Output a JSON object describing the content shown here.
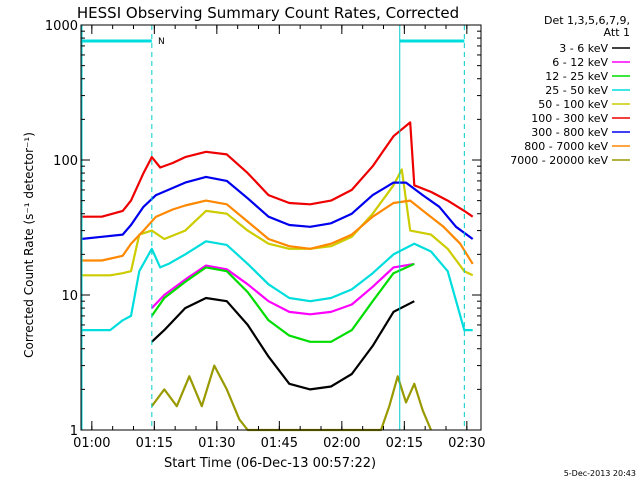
{
  "chart_data": {
    "type": "line",
    "title": "HESSI Observing Summary Count Rates, Corrected",
    "xlabel": "Start Time (06-Dec-13 00:57:22)",
    "ylabel": "Corrected Count Rate (s⁻¹ detector⁻¹)",
    "x_unit": "minutes after 00:57:22",
    "xlim": [
      0,
      96
    ],
    "xticks": [
      {
        "t": 2.6,
        "label": "01:00"
      },
      {
        "t": 17.6,
        "label": "01:15"
      },
      {
        "t": 32.6,
        "label": "01:30"
      },
      {
        "t": 47.6,
        "label": "01:45"
      },
      {
        "t": 62.6,
        "label": "02:00"
      },
      {
        "t": 77.6,
        "label": "02:15"
      },
      {
        "t": 92.6,
        "label": "02:30"
      }
    ],
    "y_scale": "log",
    "ylim": [
      1,
      1000
    ],
    "yticks": [
      {
        "v": 1,
        "label": "1"
      },
      {
        "v": 10,
        "label": "10"
      },
      {
        "v": 100,
        "label": "100"
      },
      {
        "v": 1000,
        "label": "1000"
      }
    ],
    "legend_header": [
      "Det 1,3,5,6,7,9,",
      "Att 1"
    ],
    "legend_position": "right",
    "annotations": {
      "night_label": "N",
      "footer_date": "5-Dec-2013 20:43"
    },
    "vlines_dashed": [
      17,
      92
    ],
    "vlines_solid": [
      76.5
    ],
    "night_bars": [
      [
        0,
        17
      ],
      [
        76.5,
        92
      ]
    ],
    "series": [
      {
        "name": "3 - 6 keV",
        "color": "#000000",
        "points": [
          [
            17,
            4.5
          ],
          [
            20,
            5.5
          ],
          [
            25,
            8.0
          ],
          [
            30,
            9.5
          ],
          [
            35,
            9.0
          ],
          [
            40,
            6.0
          ],
          [
            45,
            3.5
          ],
          [
            50,
            2.2
          ],
          [
            55,
            2.0
          ],
          [
            60,
            2.1
          ],
          [
            65,
            2.6
          ],
          [
            70,
            4.2
          ],
          [
            75,
            7.5
          ],
          [
            80,
            9.0
          ]
        ]
      },
      {
        "name": "6 - 12 keV",
        "color": "#ff00ff",
        "points": [
          [
            17,
            8.0
          ],
          [
            20,
            10.0
          ],
          [
            25,
            13.0
          ],
          [
            30,
            16.5
          ],
          [
            35,
            15.5
          ],
          [
            40,
            12.0
          ],
          [
            45,
            9.0
          ],
          [
            50,
            7.5
          ],
          [
            55,
            7.2
          ],
          [
            60,
            7.5
          ],
          [
            65,
            8.5
          ],
          [
            70,
            11.5
          ],
          [
            75,
            16.0
          ],
          [
            80,
            17.0
          ]
        ]
      },
      {
        "name": "12 - 25 keV",
        "color": "#00dd00",
        "points": [
          [
            17,
            7.0
          ],
          [
            20,
            9.5
          ],
          [
            25,
            12.5
          ],
          [
            30,
            16.0
          ],
          [
            35,
            15.0
          ],
          [
            40,
            10.5
          ],
          [
            45,
            6.5
          ],
          [
            50,
            5.0
          ],
          [
            55,
            4.5
          ],
          [
            60,
            4.5
          ],
          [
            65,
            5.5
          ],
          [
            70,
            9.0
          ],
          [
            75,
            14.5
          ],
          [
            80,
            17.0
          ]
        ]
      },
      {
        "name": "25 - 50 keV",
        "color": "#00dddd",
        "points": [
          [
            0,
            5.5
          ],
          [
            7,
            5.5
          ],
          [
            10,
            6.5
          ],
          [
            12,
            7.0
          ],
          [
            14,
            15.0
          ],
          [
            17,
            22.0
          ],
          [
            19,
            16.0
          ],
          [
            21,
            17.0
          ],
          [
            25,
            20.0
          ],
          [
            30,
            25.0
          ],
          [
            35,
            23.5
          ],
          [
            40,
            17.0
          ],
          [
            45,
            12.0
          ],
          [
            50,
            9.5
          ],
          [
            55,
            9.0
          ],
          [
            60,
            9.5
          ],
          [
            65,
            11.0
          ],
          [
            70,
            14.5
          ],
          [
            75,
            20.0
          ],
          [
            80,
            24.0
          ],
          [
            84,
            21.0
          ],
          [
            88,
            15.0
          ],
          [
            92,
            5.5
          ],
          [
            94,
            5.5
          ]
        ]
      },
      {
        "name": "50 - 100 keV",
        "color": "#cccc00",
        "points": [
          [
            0,
            14.0
          ],
          [
            7,
            14.0
          ],
          [
            10,
            14.5
          ],
          [
            12,
            15.0
          ],
          [
            14,
            28.0
          ],
          [
            17,
            30.0
          ],
          [
            20,
            26.0
          ],
          [
            25,
            30.0
          ],
          [
            30,
            42.0
          ],
          [
            35,
            40.0
          ],
          [
            40,
            30.0
          ],
          [
            45,
            24.0
          ],
          [
            50,
            22.0
          ],
          [
            55,
            22.0
          ],
          [
            60,
            23.0
          ],
          [
            65,
            27.0
          ],
          [
            70,
            40.0
          ],
          [
            75,
            65.0
          ],
          [
            77,
            85.0
          ],
          [
            79,
            30.0
          ],
          [
            84,
            28.0
          ],
          [
            88,
            22.0
          ],
          [
            92,
            15.0
          ],
          [
            94,
            14.0
          ]
        ]
      },
      {
        "name": "100 - 300 keV",
        "color": "#ee0000",
        "points": [
          [
            0,
            38.0
          ],
          [
            5,
            38.0
          ],
          [
            10,
            42.0
          ],
          [
            12,
            50.0
          ],
          [
            15,
            80.0
          ],
          [
            17,
            105.0
          ],
          [
            19,
            88.0
          ],
          [
            22,
            95.0
          ],
          [
            25,
            105.0
          ],
          [
            30,
            115.0
          ],
          [
            35,
            110.0
          ],
          [
            40,
            80.0
          ],
          [
            45,
            55.0
          ],
          [
            50,
            48.0
          ],
          [
            55,
            47.0
          ],
          [
            60,
            50.0
          ],
          [
            65,
            60.0
          ],
          [
            70,
            90.0
          ],
          [
            75,
            150.0
          ],
          [
            79,
            190.0
          ],
          [
            80,
            65.0
          ],
          [
            84,
            58.0
          ],
          [
            88,
            50.0
          ],
          [
            92,
            42.0
          ],
          [
            94,
            38.0
          ]
        ]
      },
      {
        "name": "300 - 800 keV",
        "color": "#0000ee",
        "points": [
          [
            0,
            26.0
          ],
          [
            5,
            27.0
          ],
          [
            10,
            28.0
          ],
          [
            12,
            33.0
          ],
          [
            15,
            45.0
          ],
          [
            18,
            55.0
          ],
          [
            22,
            62.0
          ],
          [
            25,
            68.0
          ],
          [
            30,
            75.0
          ],
          [
            35,
            70.0
          ],
          [
            40,
            52.0
          ],
          [
            45,
            38.0
          ],
          [
            50,
            33.0
          ],
          [
            55,
            32.0
          ],
          [
            60,
            34.0
          ],
          [
            65,
            40.0
          ],
          [
            70,
            55.0
          ],
          [
            75,
            68.0
          ],
          [
            78,
            68.0
          ],
          [
            82,
            55.0
          ],
          [
            86,
            45.0
          ],
          [
            90,
            32.0
          ],
          [
            94,
            26.0
          ]
        ]
      },
      {
        "name": "800 - 7000 keV",
        "color": "#ff8800",
        "points": [
          [
            0,
            18.0
          ],
          [
            5,
            18.0
          ],
          [
            10,
            19.5
          ],
          [
            12,
            24.0
          ],
          [
            15,
            30.0
          ],
          [
            18,
            38.0
          ],
          [
            22,
            43.0
          ],
          [
            25,
            46.0
          ],
          [
            30,
            50.0
          ],
          [
            35,
            47.0
          ],
          [
            40,
            35.0
          ],
          [
            45,
            26.0
          ],
          [
            50,
            23.0
          ],
          [
            55,
            22.0
          ],
          [
            60,
            24.0
          ],
          [
            65,
            28.0
          ],
          [
            70,
            38.0
          ],
          [
            75,
            48.0
          ],
          [
            79,
            50.0
          ],
          [
            83,
            40.0
          ],
          [
            87,
            32.0
          ],
          [
            91,
            24.0
          ],
          [
            94,
            17.0
          ]
        ]
      },
      {
        "name": "7000 - 20000 keV",
        "color": "#999900",
        "points": [
          [
            17,
            1.5
          ],
          [
            20,
            2.0
          ],
          [
            23,
            1.5
          ],
          [
            26,
            2.5
          ],
          [
            29,
            1.5
          ],
          [
            32,
            3.0
          ],
          [
            35,
            2.0
          ],
          [
            38,
            1.2
          ],
          [
            40,
            1.0
          ],
          [
            72,
            1.0
          ],
          [
            74,
            1.5
          ],
          [
            76,
            2.5
          ],
          [
            78,
            1.6
          ],
          [
            80,
            2.2
          ],
          [
            82,
            1.4
          ],
          [
            84,
            1.0
          ]
        ]
      }
    ]
  }
}
